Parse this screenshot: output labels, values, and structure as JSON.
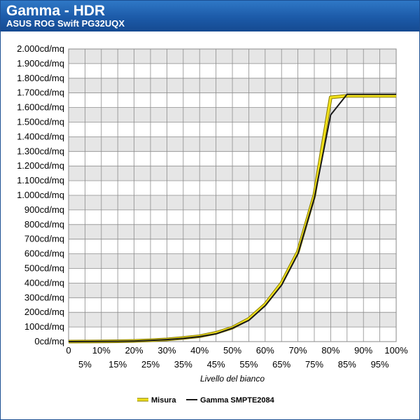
{
  "header": {
    "title": "Gamma - HDR",
    "subtitle": "ASUS ROG Swift PG32UQX"
  },
  "chart_data": {
    "type": "line",
    "title": "Gamma - HDR",
    "subtitle": "ASUS ROG Swift PG32UQX",
    "xlabel": "Livello del bianco",
    "ylabel": "",
    "x": [
      0,
      5,
      10,
      15,
      20,
      25,
      30,
      35,
      40,
      45,
      50,
      55,
      60,
      65,
      70,
      75,
      80,
      85,
      90,
      95,
      100
    ],
    "x_tick_labels_top": [
      "0",
      "10%",
      "20%",
      "30%",
      "40%",
      "50%",
      "60%",
      "70%",
      "80%",
      "90%",
      "100%"
    ],
    "x_tick_labels_bottom": [
      "5%",
      "15%",
      "25%",
      "35%",
      "45%",
      "55%",
      "65%",
      "75%",
      "85%",
      "95%"
    ],
    "y_tick_labels": [
      "0cd/mq",
      "100cd/mq",
      "200cd/mq",
      "300cd/mq",
      "400cd/mq",
      "500cd/mq",
      "600cd/mq",
      "700cd/mq",
      "800cd/mq",
      "900cd/mq",
      "1.000cd/mq",
      "1.100cd/mq",
      "1.200cd/mq",
      "1.300cd/mq",
      "1.400cd/mq",
      "1.500cd/mq",
      "1.600cd/mq",
      "1.700cd/mq",
      "1.800cd/mq",
      "1.900cd/mq",
      "2.000cd/mq"
    ],
    "xlim": [
      0,
      100
    ],
    "ylim": [
      0,
      2000
    ],
    "grid": true,
    "legend_position": "bottom-center",
    "series": [
      {
        "name": "Misura",
        "color": "#f2e21b",
        "values": [
          0,
          0.3,
          1,
          2.5,
          5,
          9,
          15,
          25,
          37,
          60,
          95,
          155,
          255,
          400,
          615,
          1000,
          1670,
          1680,
          1680,
          1680,
          1680
        ]
      },
      {
        "name": "Gamma SMPTE2084",
        "color": "#1a1a1a",
        "values": [
          0,
          0.3,
          1,
          2,
          4,
          8,
          14,
          22,
          34,
          53,
          92,
          145,
          245,
          385,
          600,
          980,
          1550,
          1690,
          1690,
          1690,
          1690
        ]
      }
    ]
  }
}
